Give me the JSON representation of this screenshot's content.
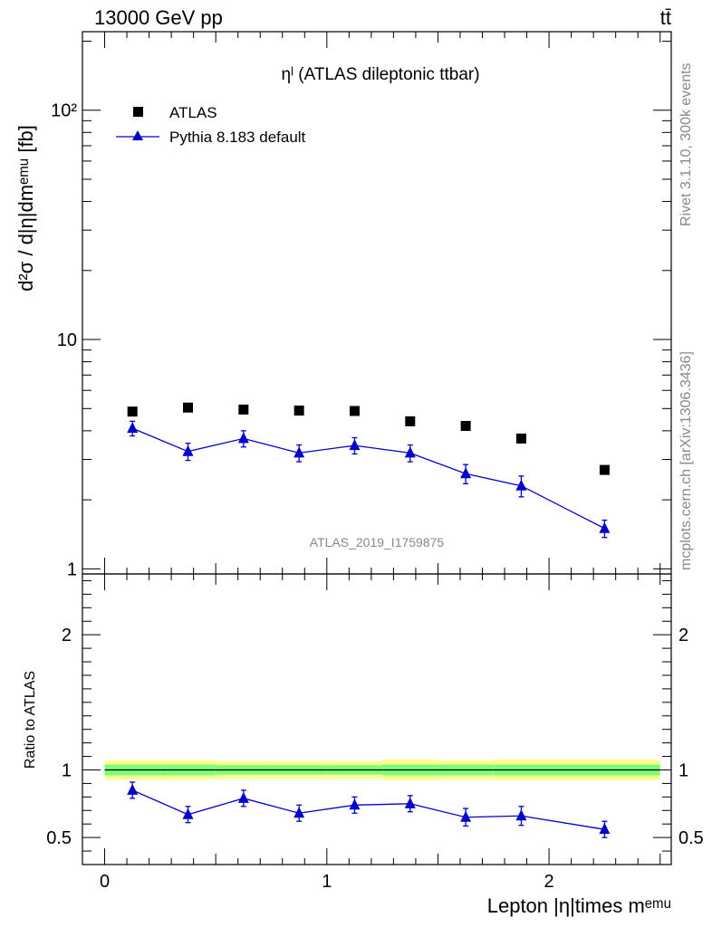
{
  "header": {
    "energy_label": "13000 GeV pp",
    "process_label": "tt̄"
  },
  "side_text": {
    "rivet": "Rivet 3.1.10,  300k events",
    "source": "mcplots.cern.ch [arXiv:1306.3436]"
  },
  "watermark": "ATLAS_2019_I1759875",
  "colors": {
    "data": "#000000",
    "mc": "#0000cc",
    "band_inner": "#7cfc7c",
    "band_outer": "#ffff88"
  },
  "chart_data": [
    {
      "type": "scatter",
      "title": "ηˡ (ATLAS dileptonic ttbar)",
      "ylabel": "d²σ / d|η|dmᵉᵐᵘ [fb]",
      "ylog": true,
      "ylim": [
        0.95,
        220
      ],
      "xlim": [
        -0.1,
        2.55
      ],
      "y_ticks": [
        1,
        10,
        100
      ],
      "y_tick_labels": [
        "1",
        "10",
        "10²"
      ],
      "legend_position": "top-left",
      "x": [
        0.125,
        0.375,
        0.625,
        0.875,
        1.125,
        1.375,
        1.625,
        1.875,
        2.25
      ],
      "series": [
        {
          "name": "ATLAS",
          "marker": "square",
          "values": [
            4.85,
            5.05,
            4.95,
            4.9,
            4.88,
            4.4,
            4.2,
            3.7,
            2.7
          ]
        },
        {
          "name": "Pythia 8.183 default",
          "marker": "triangle",
          "values": [
            4.1,
            3.25,
            3.7,
            3.2,
            3.45,
            3.2,
            2.6,
            2.3,
            1.5
          ],
          "err": [
            0.3,
            0.28,
            0.3,
            0.27,
            0.28,
            0.27,
            0.25,
            0.24,
            0.13
          ]
        }
      ]
    },
    {
      "type": "scatter",
      "xlabel": "Lepton |η|times mᵉᵐᵘ",
      "ylabel": "Ratio to ATLAS",
      "ylim": [
        0.3,
        2.45
      ],
      "xlim": [
        -0.1,
        2.55
      ],
      "y_ticks": [
        0.5,
        1,
        2
      ],
      "y_tick_labels": [
        "0.5",
        "1",
        "2"
      ],
      "x_ticks": [
        0,
        1,
        2
      ],
      "x_tick_labels": [
        "0",
        "1",
        "2"
      ],
      "x": [
        0.125,
        0.375,
        0.625,
        0.875,
        1.125,
        1.375,
        1.625,
        1.875,
        2.25
      ],
      "series": [
        {
          "name": "Pythia 8.183 default",
          "values": [
            0.85,
            0.67,
            0.79,
            0.68,
            0.74,
            0.75,
            0.65,
            0.66,
            0.56
          ],
          "err": [
            0.06,
            0.06,
            0.06,
            0.06,
            0.06,
            0.06,
            0.065,
            0.07,
            0.06
          ]
        }
      ],
      "band": {
        "x_edges": [
          0,
          0.25,
          0.5,
          0.75,
          1.0,
          1.25,
          1.5,
          1.75,
          2.0,
          2.5
        ],
        "inner": [
          0.04,
          0.04,
          0.035,
          0.035,
          0.035,
          0.04,
          0.04,
          0.04,
          0.04
        ],
        "outer": [
          0.07,
          0.07,
          0.065,
          0.065,
          0.065,
          0.075,
          0.07,
          0.075,
          0.075
        ]
      }
    }
  ]
}
